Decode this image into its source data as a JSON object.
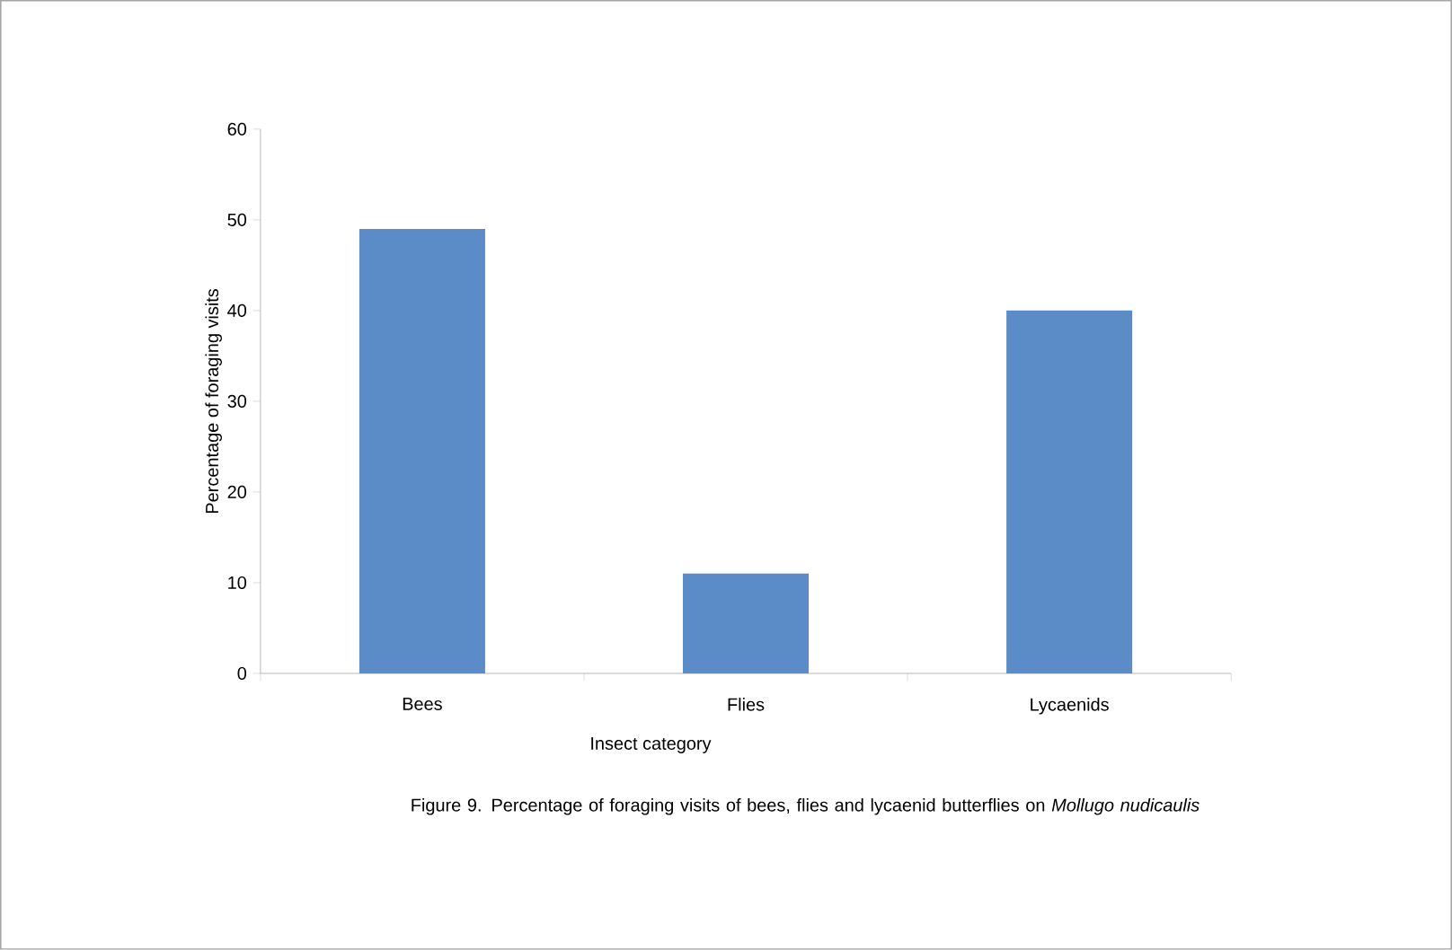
{
  "chart_data": {
    "type": "bar",
    "categories": [
      "Bees",
      "Flies",
      "Lycaenids"
    ],
    "values": [
      49,
      11,
      40
    ],
    "color": "#5b8cc8",
    "ylim": [
      0,
      60
    ],
    "yticks": [
      0,
      10,
      20,
      30,
      40,
      50,
      60
    ],
    "xlabel": "Insect category",
    "ylabel": "Percentage of foraging visits",
    "annotations": [
      "Figure 9.  Percentage of foraging visits of bees, flies and lycaenid butterflies on *Mollugo nudicaulis*"
    ]
  }
}
